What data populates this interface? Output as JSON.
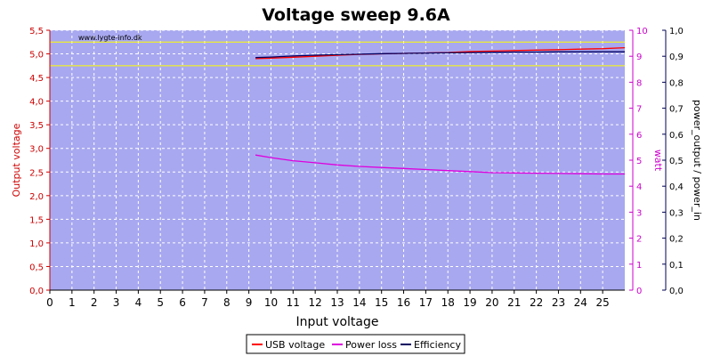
{
  "chart_data": {
    "type": "line",
    "title": "Voltage sweep 9.6A",
    "watermark": "www.lygte-info.dk",
    "xlabel": "Input voltage",
    "ylabel_left": "Output voltage",
    "ylabel_right1": "watt",
    "ylabel_right2": "power_output / power_in",
    "xlim": [
      0,
      26
    ],
    "ylim_left": [
      0,
      5.5
    ],
    "ylim_right1": [
      0,
      10
    ],
    "ylim_right2": [
      0,
      1
    ],
    "x_ticks": [
      "0",
      "1",
      "2",
      "3",
      "4",
      "5",
      "6",
      "7",
      "8",
      "9",
      "10",
      "11",
      "12",
      "13",
      "14",
      "15",
      "16",
      "17",
      "18",
      "19",
      "20",
      "21",
      "22",
      "23",
      "24",
      "25"
    ],
    "y_left_ticks": [
      "0,0",
      "0,5",
      "1,0",
      "1,5",
      "2,0",
      "2,5",
      "3,0",
      "3,5",
      "4,0",
      "4,5",
      "5,0",
      "5,5"
    ],
    "y_right1_ticks": [
      "0",
      "1",
      "2",
      "3",
      "4",
      "5",
      "6",
      "7",
      "8",
      "9",
      "10"
    ],
    "y_right2_ticks": [
      "0,0",
      "0,1",
      "0,2",
      "0,3",
      "0,4",
      "0,5",
      "0,6",
      "0,7",
      "0,8",
      "0,9",
      "1,0"
    ],
    "reference_lines_left": [
      4.75,
      5.25
    ],
    "grid": true,
    "legend_position": "bottom-center",
    "series": [
      {
        "name": "USB voltage",
        "axis": "left",
        "color": "#ff0000",
        "x": [
          9.3,
          10,
          11,
          12,
          13,
          14,
          15,
          16,
          17,
          18,
          19,
          20,
          21,
          22,
          23,
          24,
          25,
          26
        ],
        "y": [
          4.9,
          4.91,
          4.93,
          4.95,
          4.97,
          4.99,
          5.0,
          5.01,
          5.02,
          5.03,
          5.05,
          5.06,
          5.07,
          5.08,
          5.09,
          5.1,
          5.11,
          5.13
        ]
      },
      {
        "name": "Power loss",
        "axis": "right1",
        "color": "#dd00dd",
        "x": [
          9.3,
          10,
          11,
          12,
          13,
          14,
          15,
          16,
          17,
          18,
          19,
          20,
          21,
          22,
          23,
          24,
          25,
          26
        ],
        "y": [
          5.2,
          5.1,
          4.98,
          4.9,
          4.82,
          4.76,
          4.72,
          4.68,
          4.64,
          4.6,
          4.56,
          4.52,
          4.51,
          4.5,
          4.49,
          4.48,
          4.47,
          4.47
        ]
      },
      {
        "name": "Efficiency",
        "axis": "right2",
        "color": "#000060",
        "x": [
          9.3,
          10,
          11,
          12,
          13,
          14,
          15,
          16,
          17,
          18,
          19,
          20,
          21,
          22,
          23,
          24,
          25,
          26
        ],
        "y": [
          0.895,
          0.897,
          0.901,
          0.904,
          0.906,
          0.908,
          0.91,
          0.911,
          0.912,
          0.913,
          0.914,
          0.915,
          0.916,
          0.916,
          0.917,
          0.917,
          0.917,
          0.917
        ]
      }
    ]
  }
}
